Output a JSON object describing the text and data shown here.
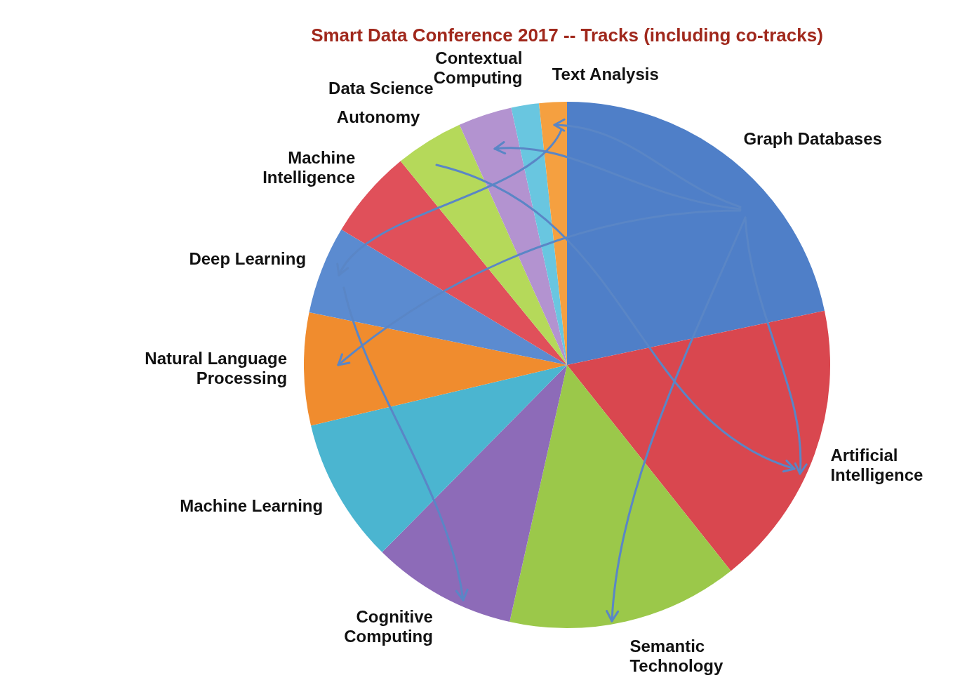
{
  "chart_data": {
    "type": "pie",
    "title": "Smart Data Conference 2017 -- Tracks (including co-tracks)",
    "categories": [
      "Graph Databases",
      "Artificial Intelligence",
      "Semantic Technology",
      "Cognitive Computing",
      "Machine Learning",
      "Natural Language Processing",
      "Deep Learning",
      "Machine Intelligence",
      "Autonomy",
      "Data Science",
      "Contextual Computing",
      "Text Analysis"
    ],
    "values": [
      21.7,
      17.6,
      14.2,
      8.9,
      8.9,
      6.9,
      5.4,
      5.5,
      4.2,
      3.3,
      1.7,
      1.7
    ],
    "colors": [
      "#4f7fc8",
      "#d9474f",
      "#9bc84a",
      "#8d6bb8",
      "#4bb5d0",
      "#f08c2e",
      "#5b8bd0",
      "#e0505a",
      "#b5d95a",
      "#b393d0",
      "#69c6e0",
      "#f5a040"
    ],
    "legend": false
  }
}
